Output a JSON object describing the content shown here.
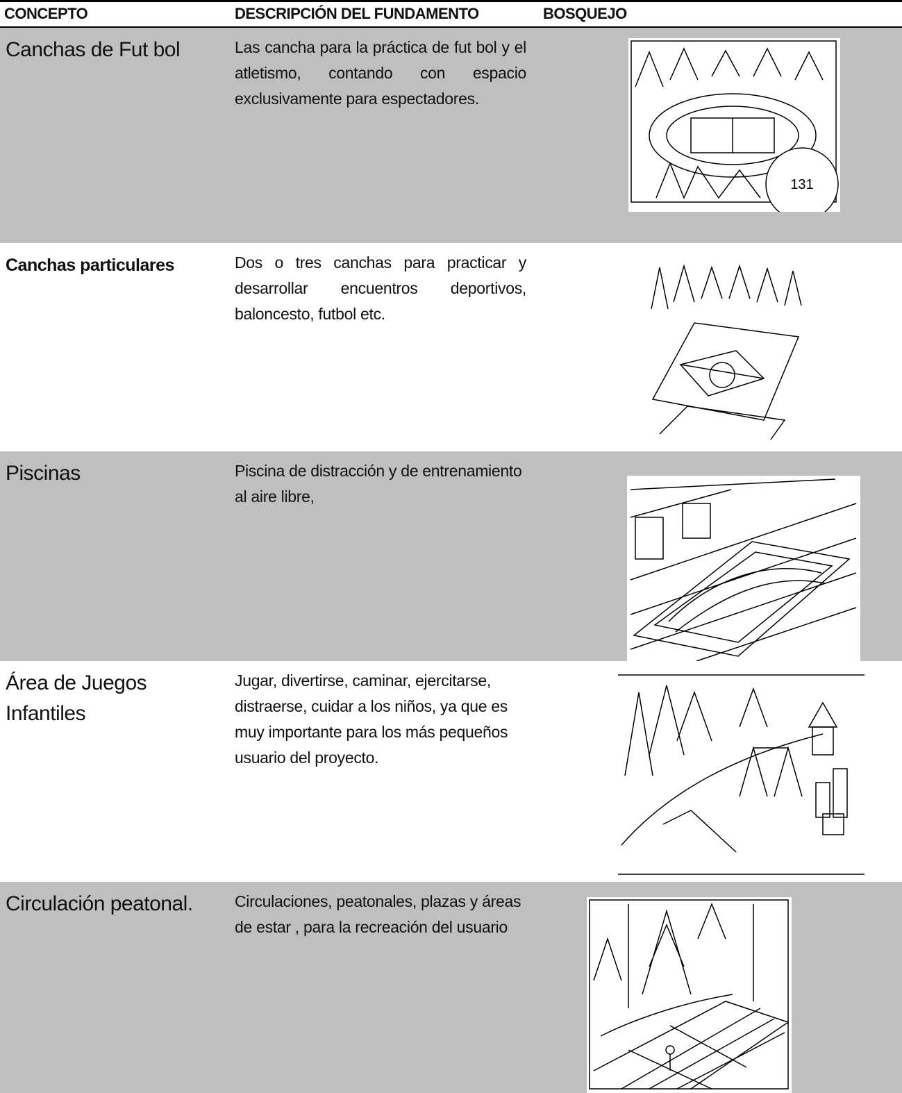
{
  "table": {
    "headers": [
      "CONCEPTO",
      "DESCRIPCIÓN DEL FUNDAMENTO",
      "BOSQUEJO"
    ],
    "rows": [
      {
        "concept": "Canchas de Fut bol",
        "description": "Las cancha para la práctica de fut bol y el atletismo, contando con espacio exclusivamente para espectadores.",
        "sketch_label": "131"
      },
      {
        "concept": "Canchas particulares",
        "description": "Dos o tres canchas para practicar y desarrollar encuentros deportivos, baloncesto, futbol etc."
      },
      {
        "concept": "Piscinas",
        "description": "Piscina de distracción y de entrenamiento al aire libre,"
      },
      {
        "concept": "Área de Juegos Infantiles",
        "description": "Jugar, divertirse, caminar, ejercitarse, distraerse, cuidar a los niños, ya que es muy importante para los más pequeños usuario del proyecto."
      },
      {
        "concept": "Circulación peatonal.",
        "description": "Circulaciones, peatonales, plazas y áreas de estar , para la recreación del usuario"
      }
    ]
  }
}
